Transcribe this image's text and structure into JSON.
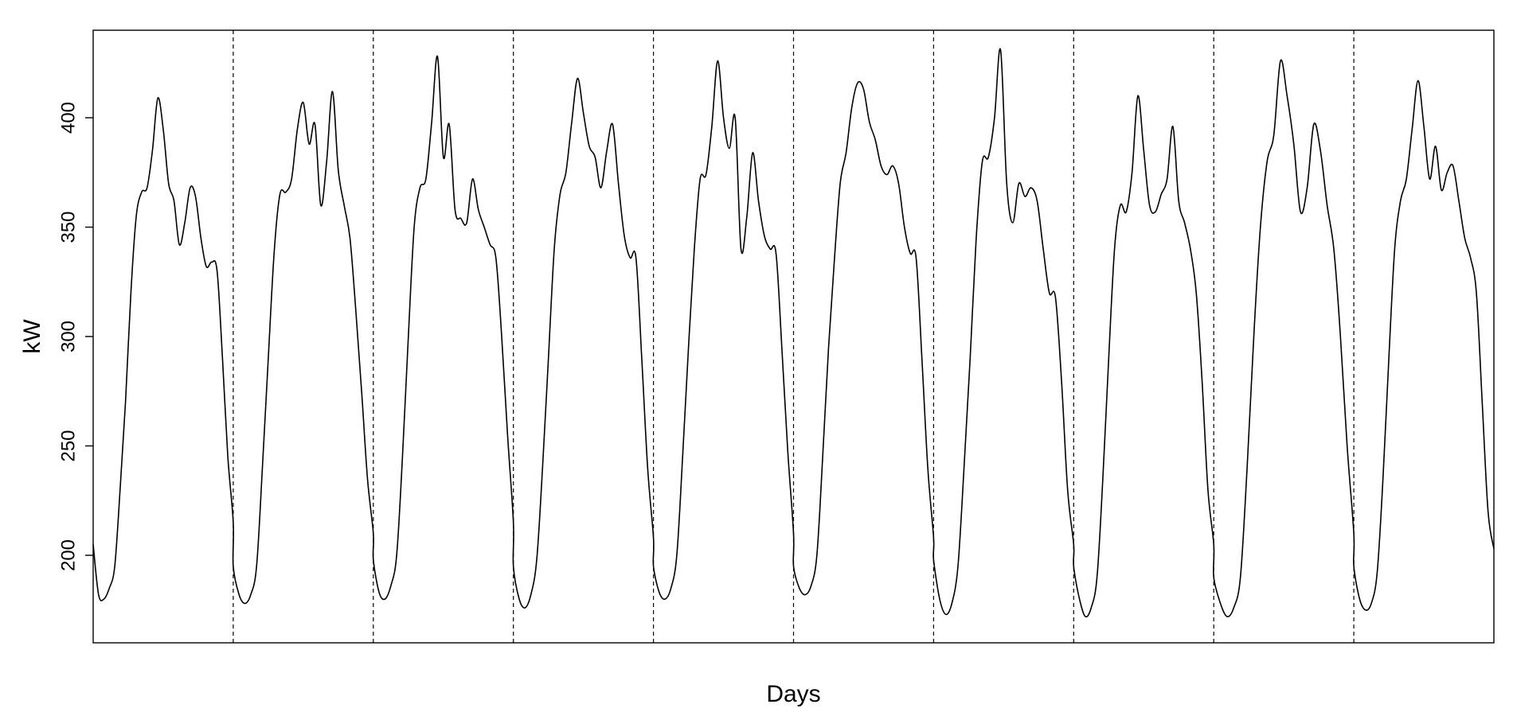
{
  "chart_data": {
    "type": "line",
    "title": "",
    "xlabel": "Days",
    "ylabel": "kW",
    "ylim": [
      160,
      440
    ],
    "yticks": [
      200,
      250,
      300,
      350,
      400
    ],
    "x_tick_labels": "none",
    "grid": false,
    "legend": "none",
    "day_separators": "dashed vertical lines between days",
    "days": 10,
    "series": [
      {
        "days": [
          [
            205,
            182,
            180,
            185,
            195,
            230,
            270,
            320,
            355,
            366,
            368,
            385,
            409,
            395,
            370,
            362,
            342,
            352,
            368,
            364,
            345,
            332,
            334,
            330,
            290,
            245,
            215
          ],
          [
            195,
            182,
            178,
            182,
            195,
            240,
            290,
            338,
            365,
            366,
            372,
            395,
            407,
            388,
            397,
            360,
            380,
            412,
            376,
            360,
            345,
            312,
            275,
            235,
            210
          ],
          [
            198,
            183,
            180,
            186,
            200,
            245,
            300,
            350,
            368,
            372,
            398,
            428,
            382,
            397,
            358,
            354,
            352,
            372,
            358,
            350,
            342,
            336,
            300,
            255,
            215
          ],
          [
            195,
            180,
            176,
            182,
            198,
            240,
            290,
            340,
            365,
            375,
            398,
            418,
            402,
            387,
            382,
            368,
            385,
            397,
            370,
            346,
            336,
            336,
            290,
            240,
            208
          ],
          [
            195,
            183,
            180,
            185,
            200,
            245,
            295,
            340,
            372,
            374,
            396,
            426,
            400,
            386,
            400,
            340,
            355,
            384,
            362,
            346,
            340,
            338,
            295,
            248,
            210
          ],
          [
            195,
            185,
            182,
            186,
            200,
            245,
            295,
            335,
            370,
            384,
            405,
            416,
            413,
            398,
            390,
            378,
            374,
            378,
            370,
            350,
            338,
            336,
            290,
            240,
            208
          ],
          [
            198,
            180,
            173,
            178,
            195,
            240,
            290,
            345,
            380,
            382,
            400,
            431,
            370,
            352,
            370,
            364,
            368,
            362,
            340,
            320,
            318,
            280,
            230,
            205
          ],
          [
            195,
            180,
            172,
            176,
            190,
            235,
            290,
            340,
            360,
            357,
            375,
            410,
            385,
            360,
            357,
            365,
            372,
            396,
            362,
            352,
            340,
            320,
            280,
            230,
            205
          ],
          [
            190,
            178,
            172,
            176,
            190,
            240,
            300,
            350,
            380,
            392,
            426,
            410,
            388,
            357,
            368,
            397,
            385,
            360,
            340,
            300,
            250,
            210
          ],
          [
            195,
            180,
            175,
            178,
            192,
            235,
            290,
            340,
            362,
            372,
            395,
            417,
            396,
            372,
            387,
            367,
            375,
            378,
            362,
            345,
            336,
            320,
            270,
            220,
            203
          ]
        ]
      }
    ]
  }
}
